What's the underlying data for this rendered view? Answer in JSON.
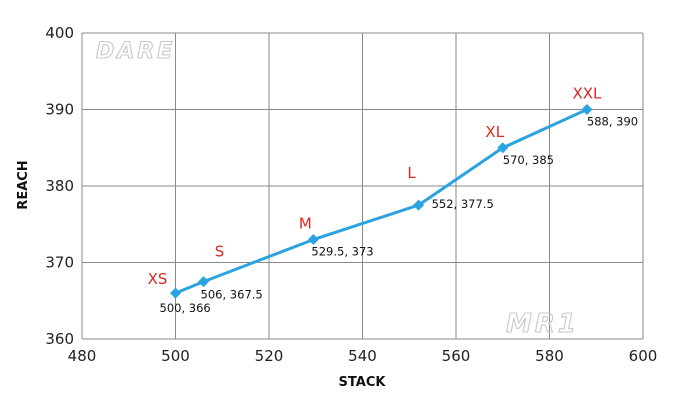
{
  "chart_data": {
    "type": "line",
    "xlabel": "STACK",
    "ylabel": "REACH",
    "xlim": [
      480,
      600
    ],
    "ylim": [
      360,
      400
    ],
    "xticks": [
      480,
      500,
      520,
      540,
      560,
      580,
      600
    ],
    "yticks": [
      360,
      370,
      380,
      390,
      400
    ],
    "grid": true,
    "series": [
      {
        "color": "#2aa3e0",
        "marker": "diamond",
        "points": [
          {
            "size": "XS",
            "x": 500,
            "y": 366,
            "label": "500, 366"
          },
          {
            "size": "S",
            "x": 506,
            "y": 367.5,
            "label": "506, 367.5"
          },
          {
            "size": "M",
            "x": 529.5,
            "y": 373,
            "label": "529.5, 373"
          },
          {
            "size": "L",
            "x": 552,
            "y": 377.5,
            "label": "552, 377.5"
          },
          {
            "size": "XL",
            "x": 570,
            "y": 385,
            "label": "570, 385"
          },
          {
            "size": "XXL",
            "x": 588,
            "y": 390,
            "label": "588, 390"
          }
        ]
      }
    ],
    "size_label_color": "#e0261f"
  },
  "watermarks": {
    "top_left": "DARE",
    "bottom_right": "MR1"
  }
}
